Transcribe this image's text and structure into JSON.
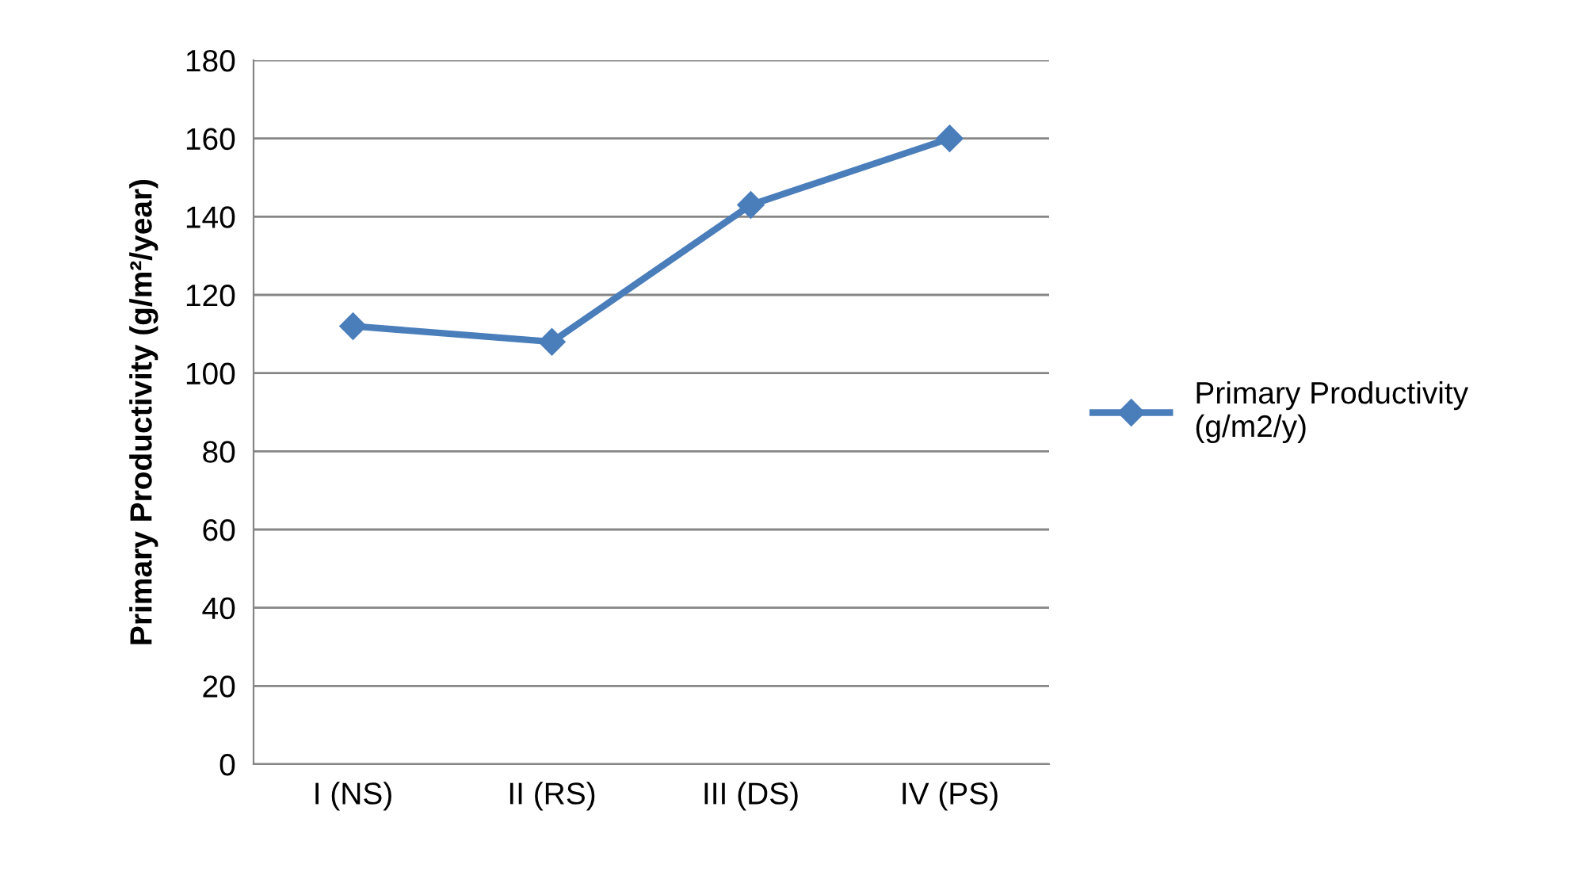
{
  "chart_data": {
    "type": "line",
    "ylabel": "Primary Productivity (g/m²/year)",
    "categories": [
      "I (NS)",
      "II (RS)",
      "III (DS)",
      "IV (PS)"
    ],
    "series": [
      {
        "name": "Primary Productivity\n(g/m2/y)",
        "color": "#4a7ebb",
        "values": [
          112,
          108,
          143,
          160
        ]
      }
    ],
    "ylim": [
      0,
      180
    ],
    "yticks": [
      0,
      20,
      40,
      60,
      80,
      100,
      120,
      140,
      160,
      180
    ],
    "grid": "y",
    "legend": "right",
    "marker": "diamond",
    "line_style": "solid"
  }
}
